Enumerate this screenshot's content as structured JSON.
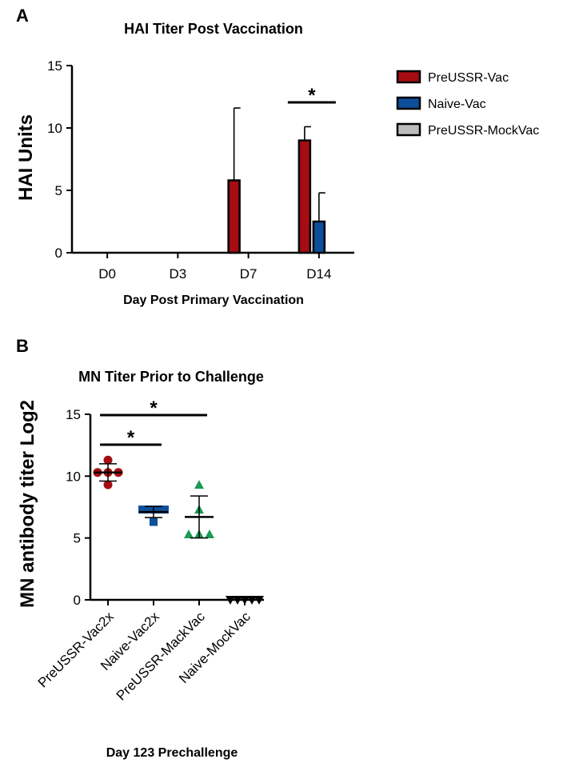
{
  "chart_data": [
    {
      "panel": "A",
      "type": "bar",
      "title": "HAI Titer Post Vaccination",
      "xlabel": "Day Post Primary Vaccination",
      "ylabel": "HAI Units",
      "ylim": [
        0,
        15
      ],
      "yticks": [
        0,
        5,
        10,
        15
      ],
      "categories": [
        "D0",
        "D3",
        "D7",
        "D14"
      ],
      "series": [
        {
          "name": "PreUSSR-Vac",
          "color": "#a50d12",
          "values": [
            0,
            0,
            5.8,
            9.0
          ],
          "errors": [
            0,
            0,
            5.8,
            1.1
          ]
        },
        {
          "name": "Naive-Vac",
          "color": "#0d4f9a",
          "values": [
            0,
            0,
            0,
            2.5
          ],
          "errors": [
            0,
            0,
            0,
            2.3
          ]
        },
        {
          "name": "PreUSSR-MockVac",
          "color": "#bdbdbd",
          "values": [
            0,
            0,
            0,
            0
          ],
          "errors": [
            0,
            0,
            0,
            0
          ]
        }
      ],
      "significance": [
        {
          "category": "D14",
          "label": "*"
        }
      ]
    },
    {
      "panel": "B",
      "type": "scatter",
      "title": "MN Titer Prior to Challenge",
      "xlabel": "Day 123 Prechallenge",
      "ylabel": "MN antibody titer Log2",
      "ylim": [
        0,
        15
      ],
      "yticks": [
        0,
        5,
        10,
        15
      ],
      "categories": [
        "PreUSSR-Vac2x",
        "Naive-Vac2x",
        "PreUSSR-MackVac",
        "Naive-MockVac"
      ],
      "groups": [
        {
          "name": "PreUSSR-Vac2x",
          "marker": "circle",
          "color": "#a50d12",
          "points": [
            11.3,
            10.3,
            10.3,
            10.3,
            9.3
          ],
          "mean": 10.3,
          "sd": 0.7
        },
        {
          "name": "Naive-Vac2x",
          "marker": "square",
          "color": "#0d4f9a",
          "points": [
            7.3,
            7.3,
            7.3,
            7.3,
            6.3
          ],
          "mean": 7.1,
          "sd": 0.45
        },
        {
          "name": "PreUSSR-MackVac",
          "marker": "triangle-up",
          "color": "#1a9a55",
          "points": [
            9.3,
            7.3,
            5.3,
            5.3,
            5.3
          ],
          "mean": 6.7,
          "sd": 1.7
        },
        {
          "name": "Naive-MockVac",
          "marker": "triangle-down",
          "color": "#000000",
          "points": [
            0,
            0,
            0,
            0,
            0
          ],
          "mean": 0,
          "sd": 0
        }
      ],
      "significance": [
        {
          "from": "PreUSSR-Vac2x",
          "to": "Naive-Vac2x",
          "label": "*"
        },
        {
          "from": "PreUSSR-Vac2x",
          "to": "PreUSSR-MackVac",
          "label": "*"
        }
      ]
    }
  ],
  "panels": {
    "a": "A",
    "b": "B"
  }
}
